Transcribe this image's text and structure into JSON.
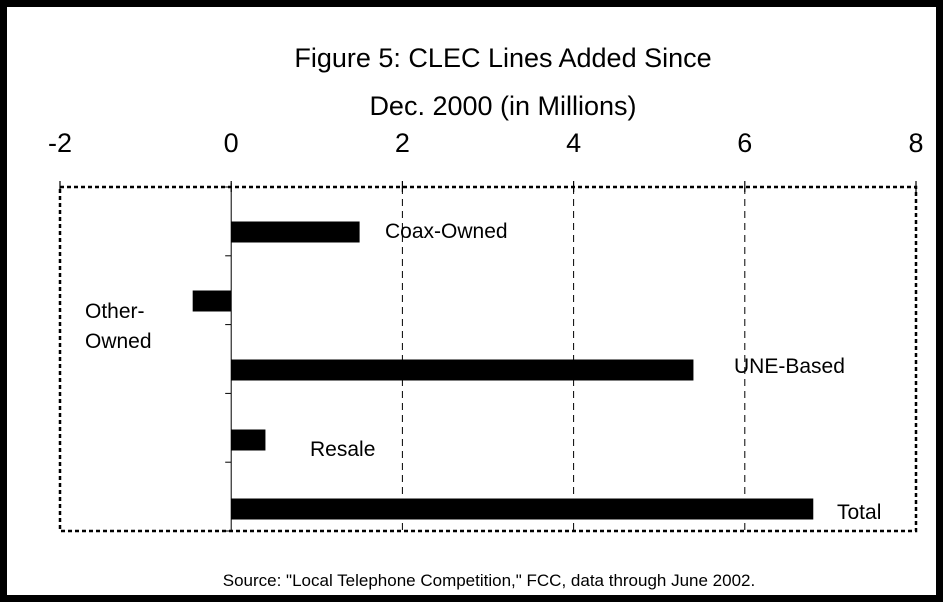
{
  "chart_data": {
    "type": "bar",
    "orientation": "horizontal",
    "title_lines": [
      "Figure 5: CLEC Lines Added Since",
      "Dec. 2000 (in Millions)"
    ],
    "categories": [
      "Coax-Owned",
      "Other-Owned",
      "UNE-Based",
      "Resale",
      "Total"
    ],
    "category_label_lines": [
      [
        "Coax-Owned"
      ],
      [
        "Other-",
        "Owned"
      ],
      [
        "UNE-Based"
      ],
      [
        "Resale"
      ],
      [
        "Total"
      ]
    ],
    "values": [
      1.5,
      -0.45,
      5.4,
      0.4,
      6.8
    ],
    "xlim": [
      -2,
      8
    ],
    "xticks": [
      "-2",
      "0",
      "2",
      "4",
      "6",
      "8"
    ],
    "xaxis_position": "top",
    "grid": true,
    "bar_color": "#000000",
    "source": "Source: \"Local Telephone Competition,\" FCC, data through June 2002."
  }
}
